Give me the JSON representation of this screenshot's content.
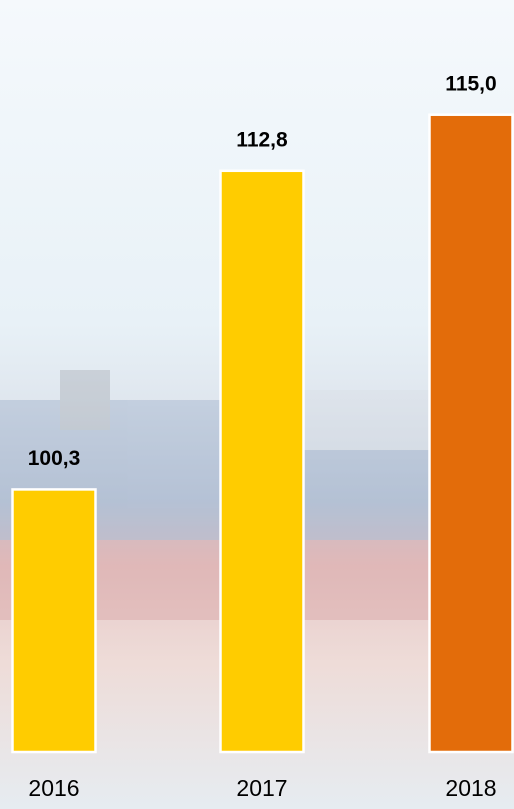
{
  "chart_data": {
    "type": "bar",
    "categories": [
      "2016",
      "2017",
      "2018"
    ],
    "values": [
      100.3,
      112.8,
      115.0
    ],
    "value_labels": [
      "100,3",
      "112,8",
      "115,0"
    ],
    "colors": [
      "#ffcc00",
      "#ffcc00",
      "#e36c0a"
    ],
    "ylim": [
      90,
      119.5
    ]
  }
}
